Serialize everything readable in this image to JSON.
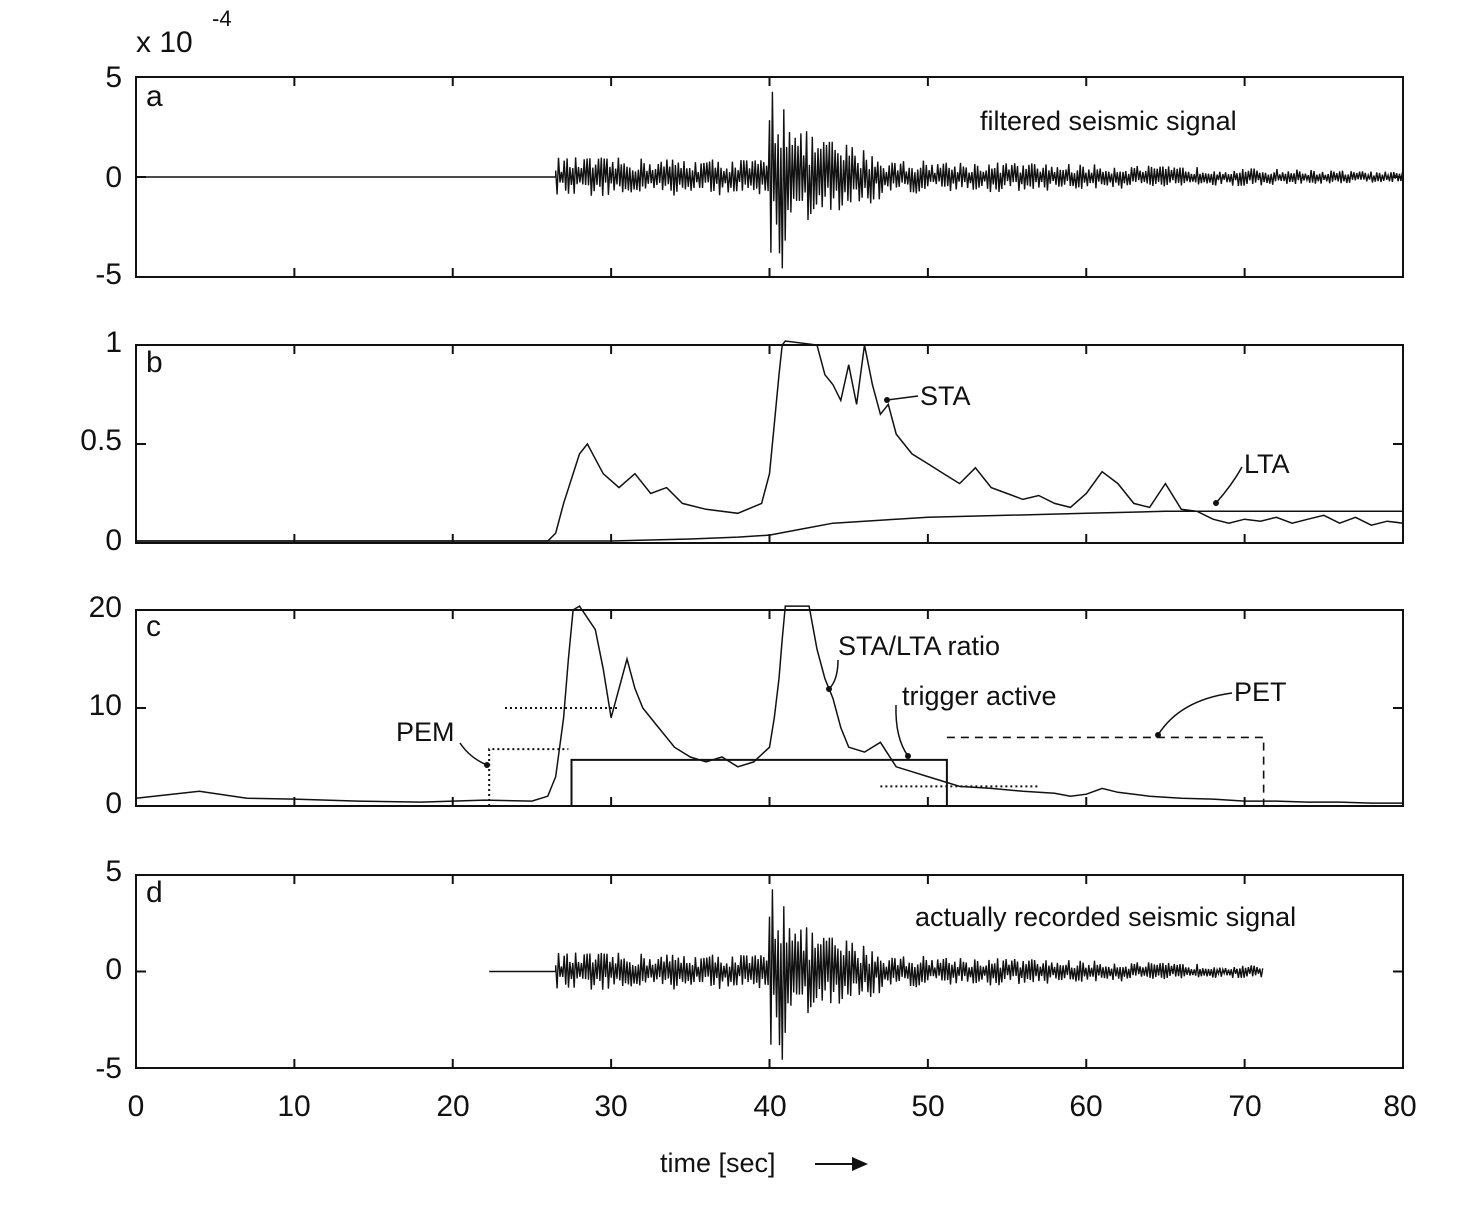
{
  "chart_data": [
    {
      "id": "a",
      "type": "line",
      "panel_label": "a",
      "annotation": "filtered seismic signal",
      "exponent_prefix": "x 10",
      "exponent": "-4",
      "ylim": [
        -5,
        5
      ],
      "yticks": [
        "5",
        "0",
        "-5"
      ],
      "xlim": [
        0,
        80
      ],
      "series": [
        {
          "kind": "seismic",
          "onset": 26.5,
          "end": 80,
          "segments": [
            {
              "t0": 26.5,
              "t1": 40.0,
              "a0": 1.0,
              "a1": 0.9
            },
            {
              "t0": 40.0,
              "t1": 41.5,
              "a0": 4.8,
              "a1": 4.8
            },
            {
              "t0": 41.5,
              "t1": 47.0,
              "a0": 2.5,
              "a1": 1.2
            },
            {
              "t0": 47.0,
              "t1": 80.0,
              "a0": 0.9,
              "a1": 0.25
            }
          ]
        }
      ]
    },
    {
      "id": "b",
      "type": "line",
      "panel_label": "b",
      "ylim": [
        0,
        1
      ],
      "yticks": [
        "1",
        "0.5",
        "0"
      ],
      "xlim": [
        0,
        80
      ],
      "series": [
        {
          "name": "STA",
          "x": [
            0,
            26,
            26.5,
            27,
            28,
            28.5,
            29.5,
            30.5,
            31.5,
            32.5,
            33.5,
            34.5,
            36,
            38,
            39.5,
            40,
            40.3,
            40.6,
            40.8,
            41,
            43,
            43.5,
            44,
            44.5,
            45,
            45.5,
            46,
            46.5,
            47,
            47.5,
            48,
            48.5,
            49,
            50,
            51,
            52,
            53,
            54,
            55,
            56,
            57,
            58,
            59,
            60,
            61,
            62,
            63,
            64,
            65,
            66,
            67,
            68,
            69,
            70,
            71,
            72,
            73,
            74,
            75,
            76,
            77,
            78,
            79,
            80
          ],
          "y": [
            0.01,
            0.01,
            0.05,
            0.2,
            0.45,
            0.5,
            0.35,
            0.28,
            0.35,
            0.25,
            0.28,
            0.2,
            0.17,
            0.15,
            0.2,
            0.35,
            0.6,
            0.85,
            1.0,
            1.2,
            1.0,
            0.85,
            0.8,
            0.72,
            0.9,
            0.7,
            1.0,
            0.8,
            0.65,
            0.7,
            0.55,
            0.5,
            0.45,
            0.4,
            0.35,
            0.3,
            0.38,
            0.28,
            0.25,
            0.22,
            0.24,
            0.2,
            0.18,
            0.25,
            0.36,
            0.3,
            0.2,
            0.18,
            0.3,
            0.17,
            0.16,
            0.12,
            0.1,
            0.12,
            0.11,
            0.13,
            0.1,
            0.12,
            0.14,
            0.1,
            0.13,
            0.09,
            0.11,
            0.1
          ]
        },
        {
          "name": "LTA",
          "x": [
            0,
            30,
            35,
            38,
            40,
            42,
            44,
            46,
            48,
            50,
            55,
            60,
            65,
            70,
            75,
            80
          ],
          "y": [
            0.01,
            0.01,
            0.02,
            0.03,
            0.04,
            0.07,
            0.1,
            0.11,
            0.12,
            0.13,
            0.14,
            0.15,
            0.16,
            0.16,
            0.16,
            0.16
          ]
        }
      ],
      "labels": [
        "STA",
        "LTA"
      ]
    },
    {
      "id": "c",
      "type": "line",
      "panel_label": "c",
      "ylim": [
        0,
        20
      ],
      "yticks": [
        "20",
        "10",
        "0"
      ],
      "xlim": [
        0,
        80
      ],
      "series": [
        {
          "name": "STA/LTA ratio",
          "x": [
            0,
            4,
            7,
            10,
            14,
            18,
            22,
            25,
            26,
            26.5,
            27,
            27.3,
            27.6,
            28,
            29,
            29.5,
            30,
            31,
            31.5,
            32,
            33,
            34,
            35,
            36,
            37,
            38,
            39,
            40,
            40.3,
            40.6,
            40.8,
            41,
            42.5,
            43,
            43.5,
            44,
            44.5,
            45,
            46,
            47,
            48,
            49,
            50,
            51,
            52,
            54,
            56,
            58,
            59,
            60,
            61,
            62,
            64,
            66,
            68,
            70,
            72,
            74,
            76,
            78,
            80
          ],
          "y": [
            0.8,
            1.5,
            0.8,
            0.7,
            0.5,
            0.4,
            0.6,
            0.5,
            1.0,
            3.0,
            9.0,
            15.0,
            20.0,
            22.0,
            18.0,
            14.0,
            9.0,
            15.0,
            12.0,
            10.0,
            8.0,
            6.0,
            5.0,
            4.5,
            5.0,
            4.0,
            4.5,
            6.0,
            9.0,
            13.0,
            17.0,
            22.0,
            22.0,
            16.0,
            13.0,
            11.0,
            8.0,
            6.0,
            5.5,
            6.5,
            4.0,
            3.5,
            3.0,
            2.5,
            2.0,
            1.8,
            1.5,
            1.3,
            1.0,
            1.2,
            1.8,
            1.4,
            1.0,
            0.8,
            0.7,
            0.5,
            0.5,
            0.4,
            0.4,
            0.3,
            0.3
          ]
        },
        {
          "name": "trigger",
          "x": [
            0,
            27.5,
            27.5,
            51.2,
            51.2,
            80
          ],
          "y": [
            0,
            0,
            4.7,
            4.7,
            0,
            0
          ]
        }
      ],
      "thresholds": [
        {
          "y": 10,
          "x0": 23.3,
          "x1": 30.5
        },
        {
          "y": 2.0,
          "x0": 47,
          "x1": 57
        }
      ],
      "pem_box": {
        "x0": 22.3,
        "x1": 27.3,
        "y": 5.8
      },
      "pet_box": {
        "x0": 51.2,
        "x1": 71.2,
        "y": 7.0
      },
      "labels": [
        "STA/LTA ratio",
        "trigger active",
        "PEM",
        "PET"
      ]
    },
    {
      "id": "d",
      "type": "line",
      "panel_label": "d",
      "annotation": "actually recorded seismic signal",
      "ylim": [
        -5,
        5
      ],
      "yticks": [
        "5",
        "0",
        "-5"
      ],
      "xlim": [
        0,
        80
      ],
      "xticks": [
        "0",
        "10",
        "20",
        "30",
        "40",
        "50",
        "60",
        "70",
        "80"
      ],
      "xlabel": "time  [sec]",
      "series": [
        {
          "kind": "seismic",
          "start": 22.3,
          "onset": 26.5,
          "end": 71.2,
          "segments": [
            {
              "t0": 26.5,
              "t1": 40.0,
              "a0": 1.0,
              "a1": 0.9
            },
            {
              "t0": 40.0,
              "t1": 41.5,
              "a0": 4.8,
              "a1": 4.8
            },
            {
              "t0": 41.5,
              "t1": 47.0,
              "a0": 2.5,
              "a1": 1.2
            },
            {
              "t0": 47.0,
              "t1": 71.2,
              "a0": 0.9,
              "a1": 0.3
            }
          ]
        }
      ]
    }
  ]
}
